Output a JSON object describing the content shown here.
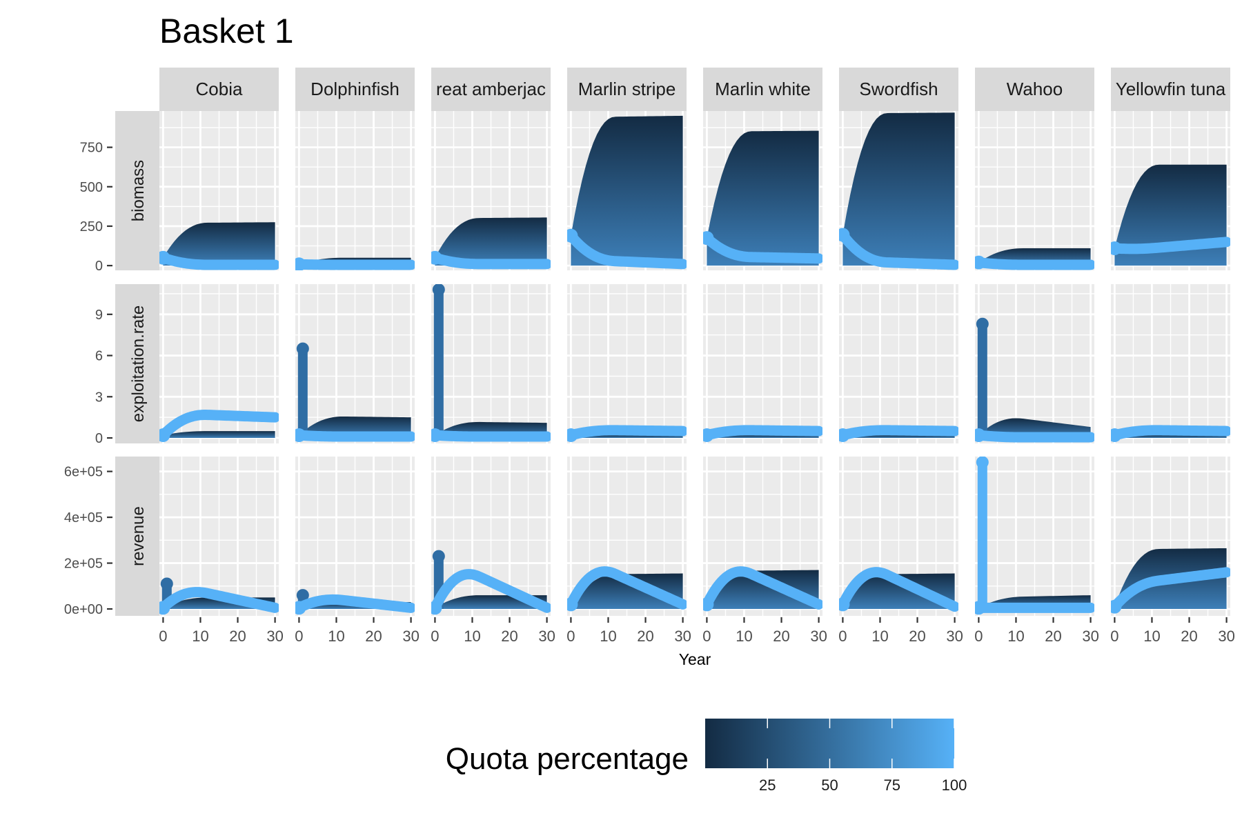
{
  "chart_data": {
    "type": "scatter",
    "title": "Basket 1",
    "xlabel": "Year",
    "x_ticks": [
      "0",
      "10",
      "20",
      "30"
    ],
    "xlim": [
      -1,
      31
    ],
    "species": [
      "Cobia",
      "Dolphinfish",
      "reat amberjac",
      "Marlin stripe",
      "Marlin white",
      "Swordfish",
      "Wahoo",
      "Yellowfin tuna"
    ],
    "rows": [
      {
        "label": "biomass",
        "ylim": [
          -30,
          980
        ],
        "ticks": [
          {
            "v": 0,
            "label": "0"
          },
          {
            "v": 250,
            "label": "250"
          },
          {
            "v": 500,
            "label": "500"
          },
          {
            "v": 750,
            "label": "750"
          }
        ],
        "species": [
          {
            "dark": [
              50,
              270,
              275
            ],
            "light": [
              50,
              5,
              5
            ]
          },
          {
            "dark": [
              8,
              50,
              50
            ],
            "light": [
              8,
              5,
              5
            ]
          },
          {
            "dark": [
              50,
              300,
              305
            ],
            "light": [
              50,
              10,
              10
            ]
          },
          {
            "dark": [
              190,
              940,
              950
            ],
            "light": [
              190,
              40,
              10
            ]
          },
          {
            "dark": [
              175,
              850,
              855
            ],
            "light": [
              175,
              60,
              45
            ]
          },
          {
            "dark": [
              195,
              965,
              970
            ],
            "light": [
              195,
              30,
              5
            ]
          },
          {
            "dark": [
              20,
              110,
              110
            ],
            "light": [
              20,
              5,
              5
            ]
          },
          {
            "dark": [
              110,
              640,
              640
            ],
            "light": [
              110,
              90,
              150
            ]
          }
        ]
      },
      {
        "label": "exploitation.rate",
        "ylim": [
          -0.4,
          11.2
        ],
        "ticks": [
          {
            "v": 0,
            "label": "0"
          },
          {
            "v": 3,
            "label": "3"
          },
          {
            "v": 6,
            "label": "6"
          },
          {
            "v": 9,
            "label": "9"
          }
        ],
        "species": [
          {
            "dark": [
              0.2,
              0.5,
              0.5
            ],
            "light": [
              0.2,
              1.8,
              1.5
            ],
            "spike": 0
          },
          {
            "dark": [
              0.2,
              1.6,
              1.5
            ],
            "light": [
              0.2,
              0.1,
              0.1
            ],
            "spike": 6.5
          },
          {
            "dark": [
              0.2,
              1.2,
              1.1
            ],
            "light": [
              0.2,
              0.1,
              0.1
            ],
            "spike": 10.8
          },
          {
            "dark": [
              0.1,
              0.2,
              0.2
            ],
            "light": [
              0.2,
              0.6,
              0.5
            ],
            "spike": 0
          },
          {
            "dark": [
              0.1,
              0.2,
              0.2
            ],
            "light": [
              0.2,
              0.6,
              0.5
            ],
            "spike": 0
          },
          {
            "dark": [
              0.1,
              0.2,
              0.2
            ],
            "light": [
              0.2,
              0.6,
              0.5
            ],
            "spike": 0
          },
          {
            "dark": [
              0.2,
              1.8,
              0.8
            ],
            "light": [
              0.2,
              0.05,
              0.05
            ],
            "spike": 8.3
          },
          {
            "dark": [
              0.1,
              0.2,
              0.2
            ],
            "light": [
              0.2,
              0.6,
              0.5
            ],
            "spike": 0
          }
        ]
      },
      {
        "label": "revenue",
        "ylim": [
          -30000,
          665000
        ],
        "ticks": [
          {
            "v": 0,
            "label": "0e+00"
          },
          {
            "v": 200000,
            "label": "2e+05"
          },
          {
            "v": 400000,
            "label": "4e+05"
          },
          {
            "v": 600000,
            "label": "6e+05"
          }
        ],
        "species": [
          {
            "dark": [
              5000,
              50000,
              50000
            ],
            "light": [
              5000,
              110000,
              5000
            ],
            "spike": 110000
          },
          {
            "dark": [
              5000,
              30000,
              30000
            ],
            "light": [
              5000,
              60000,
              5000
            ],
            "spike": 60000
          },
          {
            "dark": [
              5000,
              60000,
              60000
            ],
            "light": [
              5000,
              230000,
              5000
            ],
            "spike": 230000
          },
          {
            "dark": [
              10000,
              150000,
              155000
            ],
            "light": [
              20000,
              240000,
              20000
            ],
            "spike": 0
          },
          {
            "dark": [
              10000,
              165000,
              170000
            ],
            "light": [
              20000,
              240000,
              20000
            ],
            "spike": 0
          },
          {
            "dark": [
              10000,
              150000,
              155000
            ],
            "light": [
              20000,
              240000,
              10000
            ],
            "spike": 0
          },
          {
            "dark": [
              5000,
              50000,
              60000
            ],
            "light": [
              5000,
              5000,
              5000
            ],
            "spike": 640000
          },
          {
            "dark": [
              10000,
              260000,
              265000
            ],
            "light": [
              10000,
              100000,
              160000
            ],
            "spike": 0
          }
        ]
      }
    ],
    "colorbar": {
      "title": "Quota percentage",
      "range": [
        0,
        100
      ],
      "ticks": [
        {
          "v": 25,
          "label": "25"
        },
        {
          "v": 50,
          "label": "50"
        },
        {
          "v": 75,
          "label": "75"
        },
        {
          "v": 100,
          "label": "100"
        }
      ],
      "low_color": "#132B43",
      "high_color": "#56B1F7"
    },
    "colors": {
      "panel_bg": "#EBEBEB",
      "grid": "#FFFFFF",
      "strip_bg": "#D9D9D9",
      "text": "#1A1A1A",
      "axis_text": "#4D4D4D"
    },
    "grid": true,
    "legend_position": "bottom"
  }
}
